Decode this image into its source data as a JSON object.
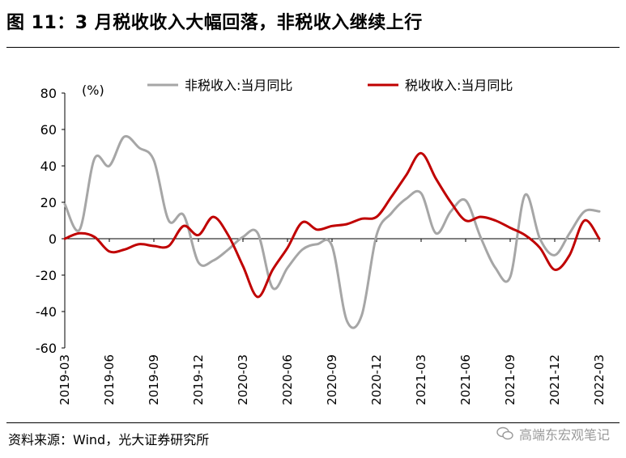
{
  "title": "图 11：3 月税收收入大幅回落，非税收入继续上行",
  "source": "资料来源：Wind，光大证券研究所",
  "watermark": "高端东宏观笔记",
  "chart_data": {
    "type": "line",
    "unit_label": "(%)",
    "ylim": [
      -60,
      80
    ],
    "yticks": [
      "80",
      "60",
      "40",
      "20",
      "0",
      "-20",
      "-40",
      "-60"
    ],
    "ytick_values": [
      80,
      60,
      40,
      20,
      0,
      -20,
      -40,
      -60
    ],
    "xticks": [
      "2019-03",
      "2019-06",
      "2019-09",
      "2019-12",
      "2020-03",
      "2020-06",
      "2020-09",
      "2020-12",
      "2021-03",
      "2021-06",
      "2021-09",
      "2021-12",
      "2022-03"
    ],
    "x": [
      "2019-03",
      "2019-04",
      "2019-05",
      "2019-06",
      "2019-07",
      "2019-08",
      "2019-09",
      "2019-10",
      "2019-11",
      "2019-12",
      "2020-01",
      "2020-02",
      "2020-03",
      "2020-04",
      "2020-05",
      "2020-06",
      "2020-07",
      "2020-08",
      "2020-09",
      "2020-10",
      "2020-11",
      "2020-12",
      "2021-01",
      "2021-02",
      "2021-03",
      "2021-04",
      "2021-05",
      "2021-06",
      "2021-07",
      "2021-08",
      "2021-09",
      "2021-10",
      "2021-11",
      "2021-12",
      "2022-01",
      "2022-02",
      "2022-03"
    ],
    "series": [
      {
        "name": "非税收入:当月同比",
        "color": "#a6a6a6",
        "values": [
          19,
          5,
          44,
          40,
          56,
          50,
          43,
          10,
          13,
          -13,
          -12,
          -6,
          1,
          3,
          -27,
          -16,
          -6,
          -3,
          -4,
          -45,
          -42,
          2,
          14,
          22,
          25,
          3,
          15,
          21,
          1,
          -16,
          -21,
          24,
          0,
          -9,
          3,
          15,
          15
        ]
      },
      {
        "name": "税收收入:当月同比",
        "color": "#c00000",
        "values": [
          0,
          3,
          1,
          -7,
          -6,
          -3,
          -4,
          -4,
          7,
          2,
          12,
          2,
          -15,
          -32,
          -17,
          -5,
          9,
          5,
          7,
          8,
          11,
          12,
          23,
          35,
          47,
          33,
          20,
          10,
          12,
          10,
          6,
          2,
          -5,
          -17,
          -9,
          10,
          0
        ]
      }
    ]
  }
}
